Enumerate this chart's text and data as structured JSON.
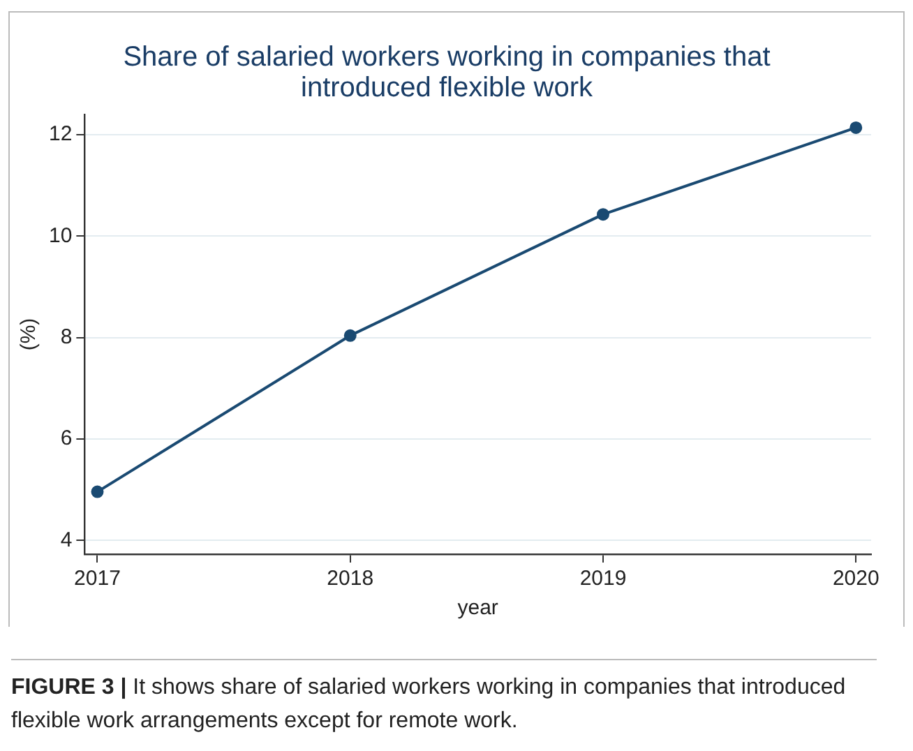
{
  "chart_data": {
    "type": "line",
    "title": "Share of salaried workers working in companies that introduced flexible work",
    "xlabel": "year",
    "ylabel": "(%)",
    "x": [
      2017,
      2018,
      2019,
      2020
    ],
    "series": [
      {
        "color": "#1a4a72",
        "values": [
          4.96,
          8.04,
          10.43,
          12.14
        ]
      }
    ],
    "xlim": [
      2016.95,
      2020.06
    ],
    "xticks": [
      2017,
      2018,
      2019,
      2020
    ],
    "ylim": [
      3.73,
      12.4
    ],
    "yticks": [
      4,
      6,
      8,
      10,
      12
    ],
    "grid": "y",
    "legend": false,
    "marker": "circle",
    "line_style": "solid",
    "annotations": [
      "FIGURE 3 | It shows share of salaried workers working in companies that introduced flexible work arrangements except for remote work."
    ]
  }
}
